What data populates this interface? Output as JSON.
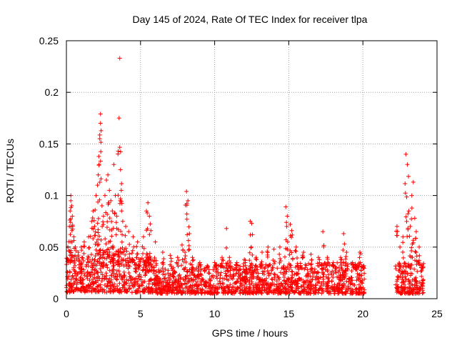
{
  "chart_data": {
    "type": "scatter",
    "title": "Day 145 of 2024, Rate Of TEC Index for receiver tlpa",
    "xlabel": "GPS time / hours",
    "ylabel": "ROTI / TECUs",
    "xlim": [
      0,
      25
    ],
    "ylim": [
      0,
      0.25
    ],
    "xticks": [
      0,
      5,
      10,
      15,
      20,
      25
    ],
    "yticks": [
      0,
      0.05,
      0.1,
      0.15,
      0.2,
      0.25
    ],
    "xtick_labels": [
      "0",
      "5",
      "10",
      "15",
      "20",
      "25"
    ],
    "ytick_labels": [
      "0",
      "0.05",
      "0.1",
      "0.15",
      "0.2",
      "0.25"
    ],
    "grid": true,
    "marker": "+",
    "color": "#ff0000",
    "series": [
      {
        "points": [
          [
            0.1,
            0.05
          ],
          [
            0.2,
            0.07
          ],
          [
            0.25,
            0.085
          ],
          [
            0.3,
            0.095
          ],
          [
            0.3,
            0.1
          ],
          [
            0.35,
            0.09
          ],
          [
            0.4,
            0.08
          ],
          [
            0.5,
            0.06
          ],
          [
            0.6,
            0.05
          ],
          [
            0.8,
            0.045
          ],
          [
            1.0,
            0.05
          ],
          [
            1.2,
            0.055
          ],
          [
            1.5,
            0.06
          ],
          [
            1.7,
            0.075
          ],
          [
            1.8,
            0.085
          ],
          [
            1.9,
            0.07
          ],
          [
            2.0,
            0.1
          ],
          [
            2.1,
            0.11
          ],
          [
            2.15,
            0.12
          ],
          [
            2.2,
            0.13
          ],
          [
            2.25,
            0.155
          ],
          [
            2.3,
            0.17
          ],
          [
            2.3,
            0.179
          ],
          [
            2.4,
            0.09
          ],
          [
            2.5,
            0.08
          ],
          [
            2.6,
            0.1
          ],
          [
            2.7,
            0.115
          ],
          [
            2.8,
            0.12
          ],
          [
            2.9,
            0.105
          ],
          [
            3.0,
            0.095
          ],
          [
            3.1,
            0.085
          ],
          [
            3.2,
            0.13
          ],
          [
            3.3,
            0.1
          ],
          [
            3.4,
            0.08
          ],
          [
            3.5,
            0.143
          ],
          [
            3.55,
            0.175
          ],
          [
            3.6,
            0.233
          ],
          [
            3.65,
            0.125
          ],
          [
            3.7,
            0.105
          ],
          [
            3.8,
            0.075
          ],
          [
            4.0,
            0.07
          ],
          [
            4.2,
            0.065
          ],
          [
            4.5,
            0.06
          ],
          [
            4.8,
            0.055
          ],
          [
            5.2,
            0.06
          ],
          [
            5.4,
            0.085
          ],
          [
            5.5,
            0.093
          ],
          [
            5.6,
            0.08
          ],
          [
            5.7,
            0.066
          ],
          [
            6.0,
            0.055
          ],
          [
            6.5,
            0.045
          ],
          [
            7.0,
            0.042
          ],
          [
            7.5,
            0.04
          ],
          [
            7.8,
            0.052
          ],
          [
            8.0,
            0.045
          ],
          [
            8.1,
            0.104
          ],
          [
            8.2,
            0.095
          ],
          [
            8.3,
            0.063
          ],
          [
            8.5,
            0.04
          ],
          [
            9.0,
            0.035
          ],
          [
            9.5,
            0.032
          ],
          [
            10.0,
            0.035
          ],
          [
            10.5,
            0.04
          ],
          [
            10.8,
            0.068
          ],
          [
            11.0,
            0.04
          ],
          [
            11.5,
            0.035
          ],
          [
            12.0,
            0.038
          ],
          [
            12.4,
            0.075
          ],
          [
            12.5,
            0.073
          ],
          [
            12.8,
            0.04
          ],
          [
            13.2,
            0.045
          ],
          [
            13.6,
            0.05
          ],
          [
            14.0,
            0.048
          ],
          [
            14.4,
            0.05
          ],
          [
            14.8,
            0.089
          ],
          [
            14.9,
            0.08
          ],
          [
            15.1,
            0.072
          ],
          [
            15.2,
            0.066
          ],
          [
            15.5,
            0.05
          ],
          [
            16.0,
            0.045
          ],
          [
            16.5,
            0.043
          ],
          [
            17.0,
            0.04
          ],
          [
            17.3,
            0.065
          ],
          [
            17.6,
            0.04
          ],
          [
            18.0,
            0.035
          ],
          [
            18.5,
            0.04
          ],
          [
            18.7,
            0.063
          ],
          [
            18.9,
            0.045
          ],
          [
            19.3,
            0.035
          ],
          [
            19.8,
            0.045
          ],
          [
            20.0,
            0.03
          ],
          [
            22.3,
            0.07
          ],
          [
            22.5,
            0.05
          ],
          [
            22.7,
            0.06
          ],
          [
            22.9,
            0.14
          ],
          [
            23.0,
            0.13
          ],
          [
            23.1,
            0.085
          ],
          [
            23.2,
            0.07
          ],
          [
            23.3,
            0.1
          ],
          [
            23.4,
            0.113
          ],
          [
            23.5,
            0.078
          ],
          [
            23.6,
            0.065
          ],
          [
            23.8,
            0.05
          ],
          [
            24.0,
            0.03
          ]
        ]
      }
    ],
    "dense_bands": [
      {
        "x": [
          0.0,
          2.0
        ],
        "y": [
          0.006,
          0.04
        ]
      },
      {
        "x": [
          2.0,
          4.0
        ],
        "y": [
          0.006,
          0.05
        ]
      },
      {
        "x": [
          4.0,
          6.0
        ],
        "y": [
          0.006,
          0.04
        ]
      },
      {
        "x": [
          6.0,
          10.0
        ],
        "y": [
          0.005,
          0.03
        ]
      },
      {
        "x": [
          10.0,
          15.0
        ],
        "y": [
          0.005,
          0.033
        ]
      },
      {
        "x": [
          15.0,
          20.1
        ],
        "y": [
          0.005,
          0.035
        ]
      },
      {
        "x": [
          22.2,
          24.1
        ],
        "y": [
          0.005,
          0.035
        ]
      }
    ]
  }
}
